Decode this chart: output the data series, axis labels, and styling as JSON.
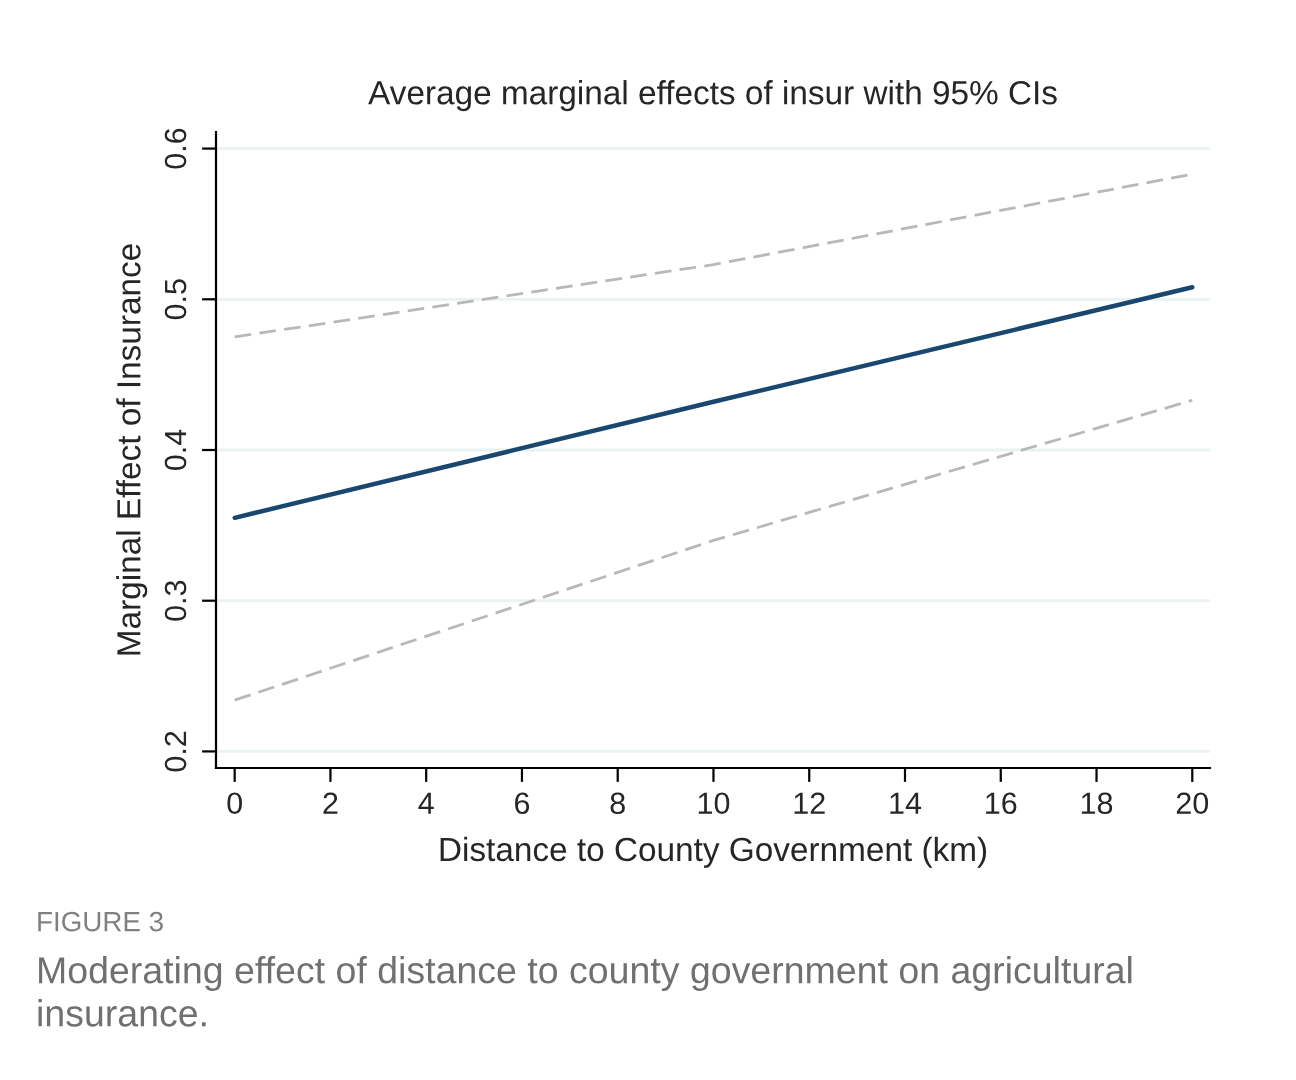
{
  "chart_data": {
    "type": "line",
    "title": "Average marginal effects of insur with 95% CIs",
    "xlabel": "Distance to County Government (km)",
    "ylabel": "Marginal Effect of Insurance",
    "x": [
      0,
      10,
      20
    ],
    "series": [
      {
        "color": "#b8b8b8",
        "values": [
          0.475,
          0.523,
          0.583
        ],
        "line_style": "dashed"
      },
      {
        "color": "#1a476f",
        "values": [
          0.355,
          0.432,
          0.508
        ],
        "line_style": "solid"
      },
      {
        "color": "#b8b8b8",
        "values": [
          0.234,
          0.34,
          0.433
        ],
        "line_style": "dashed"
      }
    ],
    "xlim": [
      -0.39,
      20.37
    ],
    "ylim": [
      0.189,
      0.611
    ],
    "xticks": [
      0,
      2,
      4,
      6,
      8,
      10,
      12,
      14,
      16,
      18,
      20
    ],
    "yticks": [
      0.2,
      0.3,
      0.4,
      0.5,
      0.6
    ],
    "grid": "y",
    "marker": "none",
    "annotations": [
      "FIGURE 3",
      "Moderating effect of distance to county government on agricultural insurance."
    ]
  }
}
